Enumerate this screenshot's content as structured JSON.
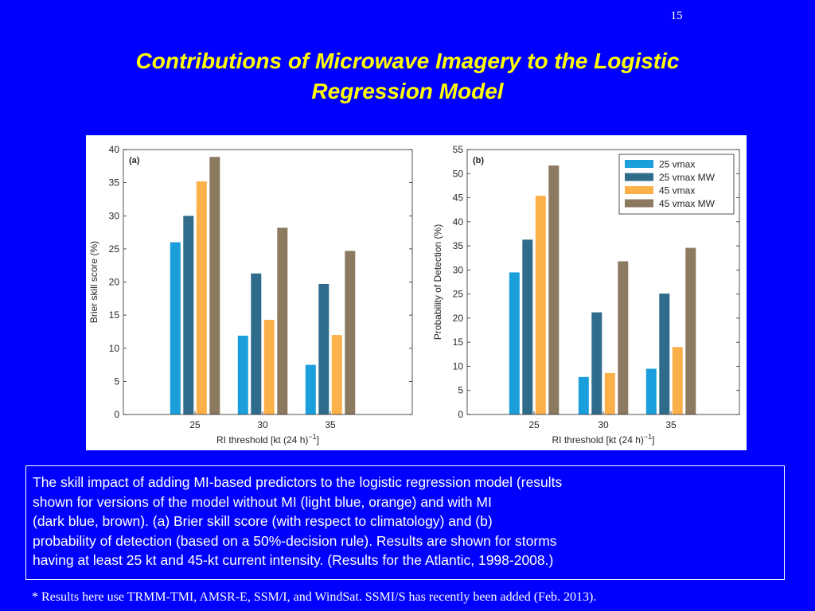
{
  "slide": {
    "number": "15",
    "title_lines": [
      "Contributions of Microwave Imagery to the Logistic",
      "Regression Model"
    ],
    "caption_lines": [
      "The skill impact of adding MI-based predictors to the logistic regression model (results",
      "shown for versions of the model without MI (light blue, orange) and with MI",
      "(dark blue, brown). (a) Brier skill score (with respect to climatology) and (b)",
      "probability of detection (based on a 50%-decision rule). Results are shown for storms",
      "having at least 25 kt and 45-kt current intensity. (Results for the Atlantic, 1998-2008.)"
    ],
    "footnote": "* Results here use TRMM-TMI, AMSR-E, SSM/I, and WindSat.  SSMI/S has recently been added (Feb. 2013)."
  },
  "colors": {
    "background": "#0000fe",
    "title": "#ffff00",
    "text": "#ffffff",
    "series": [
      "#1a9fdc",
      "#2f6c8c",
      "#fcb049",
      "#8b7a60"
    ]
  },
  "chart_data": [
    {
      "type": "bar",
      "panel_label": "(a)",
      "categories": [
        "25",
        "30",
        "35"
      ],
      "series": [
        {
          "values": [
            26.0,
            11.9,
            7.5
          ]
        },
        {
          "values": [
            30.0,
            21.3,
            19.7
          ]
        },
        {
          "values": [
            35.2,
            14.3,
            12.0
          ]
        },
        {
          "values": [
            38.9,
            28.2,
            24.7
          ]
        }
      ],
      "xlabel": "RI threshold [kt (24 h)",
      "xlabel_sup": "−1",
      "xlabel_end": "]",
      "ylabel": "Brier skill score (%)",
      "ylim": [
        0,
        40
      ],
      "yticks": [
        "0",
        "5",
        "10",
        "15",
        "20",
        "25",
        "30",
        "35",
        "40"
      ],
      "legend": "none"
    },
    {
      "type": "bar",
      "panel_label": "(b)",
      "categories": [
        "25",
        "30",
        "35"
      ],
      "series": [
        {
          "name": "25 vmax",
          "values": [
            29.5,
            7.8,
            9.5
          ]
        },
        {
          "name": "25 vmax MW",
          "values": [
            36.3,
            21.2,
            25.1
          ]
        },
        {
          "name": "45 vmax",
          "values": [
            45.4,
            8.6,
            14.0
          ]
        },
        {
          "name": "45 vmax MW",
          "values": [
            51.7,
            31.8,
            34.6
          ]
        }
      ],
      "xlabel": "RI threshold [kt (24 h)",
      "xlabel_sup": "−1",
      "xlabel_end": "]",
      "ylabel": "Probability of Detection (%)",
      "ylim": [
        0,
        55
      ],
      "yticks": [
        "0",
        "5",
        "10",
        "15",
        "20",
        "25",
        "30",
        "35",
        "40",
        "45",
        "50",
        "55"
      ],
      "legend": "top-right"
    }
  ]
}
